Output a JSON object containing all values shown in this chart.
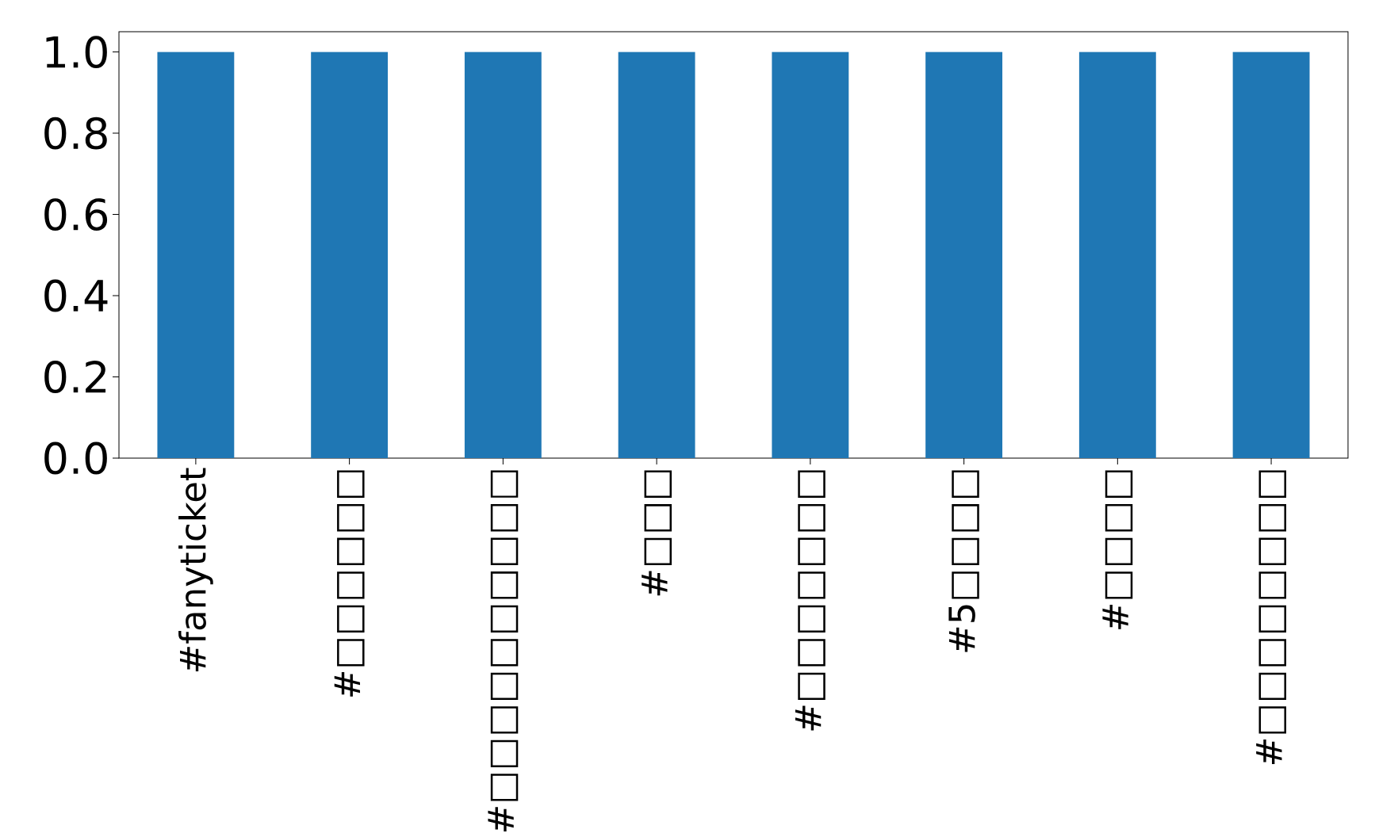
{
  "chart_data": {
    "type": "bar",
    "categories": [
      "#fanyticket",
      "#□□□□□□",
      "#□□□□□□□□□□",
      "#□□□",
      "#□□□□□□□",
      "#5□□□□",
      "#□□□□",
      "#□□□□□□□□"
    ],
    "values": [
      1,
      1,
      1,
      1,
      1,
      1,
      1,
      1
    ],
    "color": "#1f77b4",
    "ylim": [
      0,
      1.05
    ],
    "yticks": [
      {
        "value": 0,
        "label": "0.0"
      },
      {
        "value": 0.2,
        "label": "0.2"
      },
      {
        "value": 0.4,
        "label": "0.4"
      },
      {
        "value": 0.6,
        "label": "0.6"
      },
      {
        "value": 0.8,
        "label": "0.8"
      },
      {
        "value": 1.0,
        "label": "1.0"
      }
    ]
  }
}
